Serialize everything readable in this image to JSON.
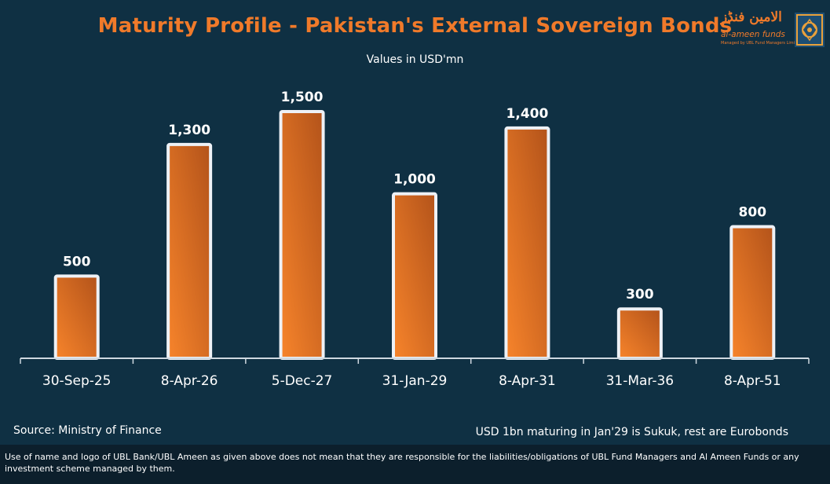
{
  "chart_data": {
    "type": "bar",
    "title": "Maturity Profile - Pakistan's External Sovereign Bonds",
    "subtitle": "Values in USD'mn",
    "categories": [
      "30-Sep-25",
      "8-Apr-26",
      "5-Dec-27",
      "31-Jan-29",
      "8-Apr-31",
      "31-Mar-36",
      "8-Apr-51"
    ],
    "values": [
      500,
      1300,
      1500,
      1000,
      1400,
      300,
      800
    ],
    "value_labels": [
      "500",
      "1,300",
      "1,500",
      "1,000",
      "1,400",
      "300",
      "800"
    ],
    "ylim": [
      0,
      1500
    ],
    "grid": false,
    "legend": "none",
    "colors": {
      "bar_light": "#f7842b",
      "bar_dark": "#b3531a",
      "bar_border": "#eef1f6",
      "background": "#0f3043",
      "title": "#f07a2a"
    }
  },
  "logo": {
    "name_urdu": "الامین فنڈز",
    "name_en": "al-ameen funds",
    "tagline": "Managed by UBL Fund Managers Limited"
  },
  "footer": {
    "source": "Source: Ministry of Finance",
    "note": "USD 1bn maturing in Jan'29 is Sukuk, rest are Eurobonds",
    "disclaimer": "Use of name and logo of UBL Bank/UBL Ameen as given above does not mean that they are responsible for the liabilities/obligations of UBL Fund Managers and Al Ameen Funds or any investment scheme managed by them."
  }
}
